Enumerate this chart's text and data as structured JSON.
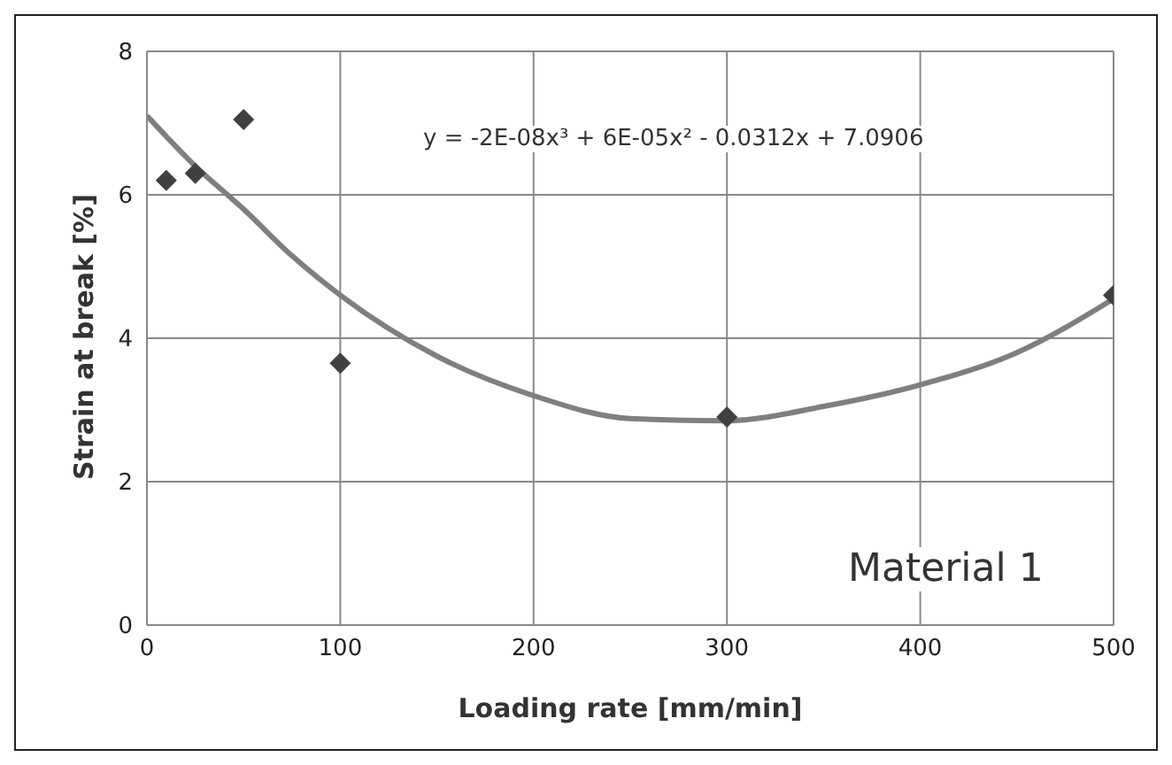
{
  "chart_data": {
    "type": "scatter",
    "xlabel": "Loading rate [mm/min]",
    "ylabel": "Strain at break [%]",
    "xlim": [
      0,
      500
    ],
    "xticks": [
      0,
      100,
      200,
      300,
      400,
      500
    ],
    "ylim": [
      0,
      8
    ],
    "yticks": [
      0,
      2,
      4,
      6,
      8
    ],
    "grid": true,
    "legend": false,
    "marker": "diamond",
    "series": [
      {
        "color": "#404040",
        "x": [
          10,
          25,
          50,
          100,
          300,
          500
        ],
        "values": [
          6.2,
          6.3,
          7.05,
          3.65,
          2.9,
          4.6
        ]
      },
      {
        "type": "line",
        "color": "#7f7f7f",
        "marker": "none",
        "x": [
          0,
          25,
          50,
          75,
          100,
          150,
          200,
          250,
          300,
          350,
          400,
          450,
          500
        ],
        "values": [
          7.1,
          6.4,
          5.8,
          5.15,
          4.6,
          3.75,
          3.2,
          2.88,
          2.85,
          3.05,
          3.35,
          3.8,
          4.55
        ]
      }
    ],
    "annotations": [
      "y = -2E-08x³ + 6E-05x² - 0.0312x + 7.0906",
      "Material 1"
    ]
  }
}
